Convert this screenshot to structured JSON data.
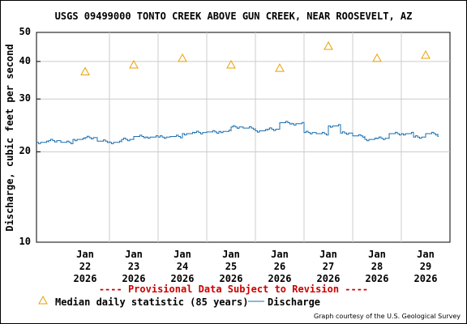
{
  "chart_data": {
    "type": "line",
    "title": "USGS 09499000 TONTO CREEK ABOVE GUN CREEK, NEAR ROOSEVELT, AZ",
    "ylabel": "Discharge, cubic feet per second",
    "xlabel": "",
    "y_scale": "log",
    "ylim": [
      10,
      50
    ],
    "y_ticks": [
      "50",
      "40",
      "30",
      "20",
      "10"
    ],
    "x_ticks": [
      {
        "month": "Jan",
        "day": "22",
        "year": "2026"
      },
      {
        "month": "Jan",
        "day": "23",
        "year": "2026"
      },
      {
        "month": "Jan",
        "day": "24",
        "year": "2026"
      },
      {
        "month": "Jan",
        "day": "25",
        "year": "2026"
      },
      {
        "month": "Jan",
        "day": "26",
        "year": "2026"
      },
      {
        "month": "Jan",
        "day": "27",
        "year": "2026"
      },
      {
        "month": "Jan",
        "day": "28",
        "year": "2026"
      },
      {
        "month": "Jan",
        "day": "29",
        "year": "2026"
      }
    ],
    "grid": true,
    "series": [
      {
        "name": "Median daily statistic (85 years)",
        "type": "scatter",
        "color": "#e8a000",
        "marker": "triangle",
        "x": [
          "2026-01-22",
          "2026-01-23",
          "2026-01-24",
          "2026-01-25",
          "2026-01-26",
          "2026-01-27",
          "2026-01-28",
          "2026-01-29"
        ],
        "values": [
          37,
          39,
          41,
          39,
          38,
          45,
          41,
          42
        ]
      },
      {
        "name": "Discharge",
        "type": "line",
        "color": "#1a6fb0",
        "x": [
          "2026-01-21 12:00",
          "2026-01-21 18:00",
          "2026-01-22 00:00",
          "2026-01-22 06:00",
          "2026-01-22 12:00",
          "2026-01-22 18:00",
          "2026-01-23 00:00",
          "2026-01-23 06:00",
          "2026-01-23 12:00",
          "2026-01-23 18:00",
          "2026-01-24 00:00",
          "2026-01-24 06:00",
          "2026-01-24 12:00",
          "2026-01-24 18:00",
          "2026-01-25 00:00",
          "2026-01-25 06:00",
          "2026-01-25 12:00",
          "2026-01-25 18:00",
          "2026-01-26 00:00",
          "2026-01-26 06:00",
          "2026-01-26 12:00",
          "2026-01-26 18:00",
          "2026-01-27 00:00",
          "2026-01-27 06:00",
          "2026-01-27 12:00",
          "2026-01-27 18:00",
          "2026-01-28 00:00",
          "2026-01-28 06:00",
          "2026-01-28 12:00",
          "2026-01-28 18:00",
          "2026-01-29 00:00",
          "2026-01-29 06:00",
          "2026-01-29 12:00",
          "2026-01-29 18:00"
        ],
        "values": [
          21.5,
          21.8,
          21.5,
          22.0,
          22.3,
          21.7,
          21.5,
          22.0,
          22.5,
          22.4,
          22.4,
          22.5,
          23.0,
          23.2,
          23.3,
          23.4,
          24.2,
          24.0,
          23.5,
          23.8,
          25.0,
          24.8,
          23.2,
          23.0,
          24.4,
          23.1,
          22.6,
          22.0,
          22.2,
          23.0,
          23.0,
          22.4,
          23.0,
          22.5
        ]
      }
    ],
    "legend": "bottom"
  },
  "provisional_note": "---- Provisional Data Subject to Revision ----",
  "legend_labels": {
    "median": "Median daily statistic (85 years)",
    "discharge": "Discharge"
  },
  "credit": "Graph courtesy of the U.S. Geological Survey"
}
